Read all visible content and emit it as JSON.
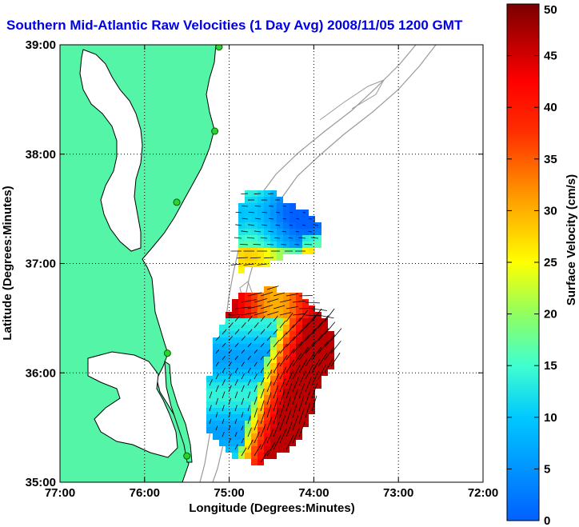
{
  "title": "Southern Mid-Atlantic Raw Velocities (1 Day Avg) 2008/11/05 1200 GMT",
  "xlabel": "Longitude (Degrees:Minutes)",
  "ylabel": "Latitude (Degrees:Minutes)",
  "colorbar": {
    "label": "Surface Velocity (cm/s)",
    "ticks": [
      "0",
      "5",
      "10",
      "15",
      "20",
      "25",
      "30",
      "35",
      "40",
      "45",
      "50"
    ],
    "range": [
      0,
      50
    ]
  },
  "axes": {
    "x_ticks": [
      "77:00",
      "76:00",
      "75:00",
      "74:00",
      "73:00",
      "72:00"
    ],
    "y_ticks": [
      "39:00",
      "38:00",
      "37:00",
      "36:00",
      "35:00"
    ],
    "lon_range": [
      -77,
      -72
    ],
    "lat_range": [
      35,
      39
    ],
    "grid": "dotted"
  },
  "colors": {
    "land": "#55f5a8",
    "coast": "#000000",
    "bathymetry": "#9a9a9a",
    "title": "#0000e6",
    "station": "#2fd12f"
  },
  "stations": [
    {
      "lon": -75.12,
      "lat": 38.98
    },
    {
      "lon": -75.17,
      "lat": 38.21
    },
    {
      "lon": -75.62,
      "lat": 37.56
    },
    {
      "lon": -75.73,
      "lat": 36.18
    },
    {
      "lon": -75.5,
      "lat": 35.24
    }
  ]
}
